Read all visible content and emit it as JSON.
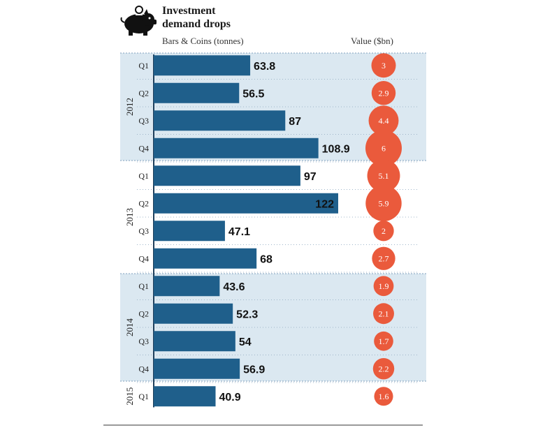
{
  "header": {
    "title_line1": "Investment",
    "title_line2": "demand drops",
    "left_subtitle": "Bars & Coins (tonnes)",
    "right_subtitle": "Value ($bn)"
  },
  "colors": {
    "bar": "#1f5f8b",
    "bubble": "#ea5a3c",
    "band": "#dbe8f1",
    "band_border": "#7f9fbd"
  },
  "chart_data": {
    "type": "bar",
    "title": "Investment demand drops",
    "xlabel": "Bars & Coins (tonnes)",
    "secondary_label": "Value ($bn)",
    "orientation": "horizontal",
    "groups": [
      {
        "year": "2012",
        "quarters": [
          "Q1",
          "Q2",
          "Q3",
          "Q4"
        ]
      },
      {
        "year": "2013",
        "quarters": [
          "Q1",
          "Q2",
          "Q3",
          "Q4"
        ]
      },
      {
        "year": "2014",
        "quarters": [
          "Q1",
          "Q2",
          "Q3",
          "Q4"
        ]
      },
      {
        "year": "2015",
        "quarters": [
          "Q1"
        ]
      }
    ],
    "categories": [
      "Q1 2012",
      "Q2 2012",
      "Q3 2012",
      "Q4 2012",
      "Q1 2013",
      "Q2 2013",
      "Q3 2013",
      "Q4 2013",
      "Q1 2014",
      "Q2 2014",
      "Q3 2014",
      "Q4 2014",
      "Q1 2015"
    ],
    "series": [
      {
        "name": "Bars & Coins (tonnes)",
        "values": [
          63.8,
          56.5,
          87,
          108.9,
          97,
          122,
          47.1,
          68,
          43.6,
          52.3,
          54,
          56.9,
          40.9
        ]
      },
      {
        "name": "Value ($bn)",
        "values": [
          3,
          2.9,
          4.4,
          6,
          5.1,
          5.9,
          2,
          2.7,
          1.9,
          2.1,
          1.7,
          2.2,
          1.6
        ]
      }
    ],
    "bar_labels": [
      "63.8",
      "56.5",
      "87",
      "108.9",
      "97",
      "122",
      "47.1",
      "68",
      "43.6",
      "52.3",
      "54",
      "56.9",
      "40.9"
    ],
    "bubble_labels": [
      "3",
      "2.9",
      "4.4",
      "6",
      "5.1",
      "5.9",
      "2",
      "2.7",
      "1.9",
      "2.1",
      "1.7",
      "2.2",
      "1.6"
    ],
    "xlim": [
      0,
      122
    ]
  }
}
